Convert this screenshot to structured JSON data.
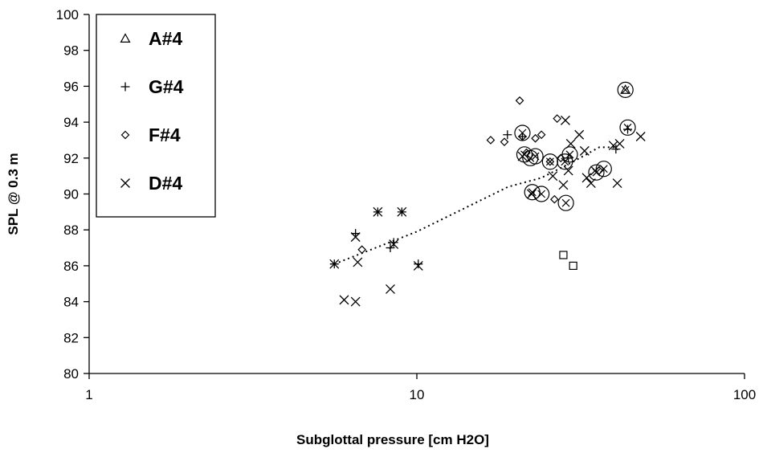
{
  "chart_data": {
    "type": "scatter",
    "title": "",
    "xlabel": "Subglottal pressure [cm H2O]",
    "ylabel": "SPL @ 0.3 m",
    "x_scale": "log",
    "xlim": [
      1,
      100
    ],
    "ylim": [
      80,
      100
    ],
    "x_ticks": [
      1,
      10,
      100
    ],
    "x_tick_labels": [
      "1",
      "10",
      "100"
    ],
    "y_ticks": [
      80,
      82,
      84,
      86,
      88,
      90,
      92,
      94,
      96,
      98,
      100
    ],
    "y_tick_labels": [
      "80",
      "82",
      "84",
      "86",
      "88",
      "90",
      "92",
      "94",
      "96",
      "98",
      "100"
    ],
    "grid": false,
    "legend_position": "top-left",
    "series": [
      {
        "name": "A#4",
        "marker": "triangle",
        "points": [
          [
            43.3,
            95.8
          ]
        ]
      },
      {
        "name": "G#4",
        "marker": "plus",
        "points": [
          [
            5.6,
            86.1
          ],
          [
            6.5,
            87.8
          ],
          [
            7.6,
            89.0
          ],
          [
            8.3,
            87.0
          ],
          [
            8.5,
            87.3
          ],
          [
            9.0,
            89.0
          ],
          [
            10.1,
            86.1
          ],
          [
            18.9,
            93.3
          ],
          [
            21.0,
            93.2
          ],
          [
            29.0,
            92.0
          ],
          [
            40.5,
            92.5
          ],
          [
            44.0,
            93.6
          ]
        ]
      },
      {
        "name": "F#4",
        "marker": "diamond",
        "points": [
          [
            6.8,
            86.9
          ],
          [
            16.8,
            93.0
          ],
          [
            18.5,
            92.9
          ],
          [
            20.6,
            95.2
          ],
          [
            21.0,
            93.2
          ],
          [
            21.6,
            92.3
          ],
          [
            23.0,
            93.1
          ],
          [
            24.0,
            93.3
          ],
          [
            25.5,
            91.8
          ],
          [
            26.3,
            89.7
          ],
          [
            26.8,
            94.2
          ],
          [
            27.5,
            92.0
          ],
          [
            36.0,
            91.3
          ]
        ]
      },
      {
        "name": "D#4",
        "marker": "x",
        "points": [
          [
            5.6,
            86.1
          ],
          [
            6.0,
            84.1
          ],
          [
            6.5,
            84.0
          ],
          [
            6.5,
            87.6
          ],
          [
            6.6,
            86.2
          ],
          [
            7.6,
            89.0
          ],
          [
            8.3,
            84.7
          ],
          [
            8.5,
            87.2
          ],
          [
            9.0,
            89.0
          ],
          [
            10.1,
            86.0
          ],
          [
            21.0,
            92.1
          ],
          [
            22.4,
            90.0
          ],
          [
            26.0,
            91.0
          ],
          [
            28.0,
            90.5
          ],
          [
            28.4,
            94.1
          ],
          [
            29.0,
            91.3
          ],
          [
            29.5,
            92.8
          ],
          [
            31.3,
            93.3
          ],
          [
            32.5,
            92.4
          ],
          [
            33.0,
            90.9
          ],
          [
            34.0,
            90.6
          ],
          [
            35.0,
            91.3
          ],
          [
            39.8,
            92.7
          ],
          [
            40.9,
            90.6
          ],
          [
            41.6,
            92.8
          ],
          [
            48.2,
            93.2
          ]
        ]
      },
      {
        "name": "",
        "marker": "square",
        "points": [
          [
            28.0,
            86.6
          ],
          [
            30.0,
            86.0
          ]
        ]
      },
      {
        "name": "",
        "marker": "circle-x",
        "points": [
          [
            21.0,
            93.4
          ],
          [
            21.3,
            92.2
          ],
          [
            22.2,
            92.0
          ],
          [
            22.5,
            90.1
          ],
          [
            23.0,
            92.1
          ],
          [
            24.0,
            90.0
          ],
          [
            25.5,
            91.8
          ],
          [
            28.3,
            91.8
          ],
          [
            28.5,
            89.5
          ],
          [
            29.3,
            92.2
          ],
          [
            35.3,
            91.2
          ],
          [
            37.2,
            91.4
          ],
          [
            43.3,
            95.8
          ],
          [
            44.0,
            93.7
          ]
        ]
      }
    ],
    "trendline": {
      "style": "dotted",
      "points": [
        [
          5.6,
          86.1
        ],
        [
          10.0,
          87.9
        ],
        [
          19.0,
          90.4
        ],
        [
          24.0,
          90.9
        ],
        [
          30.0,
          91.8
        ],
        [
          36.0,
          92.6
        ],
        [
          41.0,
          92.6
        ]
      ]
    }
  }
}
